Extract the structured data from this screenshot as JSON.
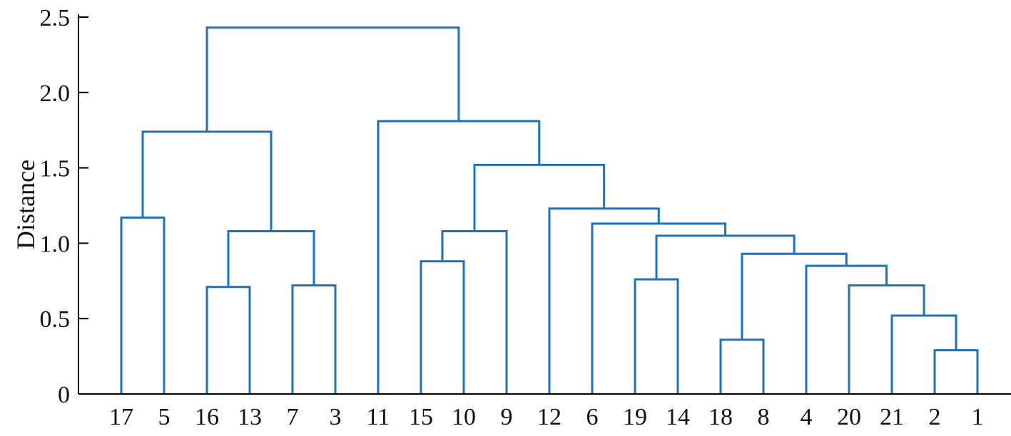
{
  "chart_data": {
    "type": "dendrogram",
    "title": "",
    "xlabel": "",
    "ylabel": "Distance",
    "ylim": [
      0,
      2.5
    ],
    "yticks": [
      0,
      0.5,
      1.0,
      1.5,
      2.0,
      2.5
    ],
    "ytick_labels": [
      "0",
      "0.5",
      "1.0",
      "1.5",
      "2.0",
      "2.5"
    ],
    "grid": false,
    "line_color": "#1f72b8",
    "leaves": [
      "17",
      "5",
      "16",
      "13",
      "7",
      "3",
      "11",
      "15",
      "10",
      "9",
      "12",
      "6",
      "19",
      "14",
      "18",
      "8",
      "4",
      "20",
      "21",
      "2",
      "1"
    ],
    "merges": [
      {
        "id": "a",
        "left": "17",
        "right": "5",
        "height": 1.17
      },
      {
        "id": "b",
        "left": "16",
        "right": "13",
        "height": 0.71
      },
      {
        "id": "c",
        "left": "7",
        "right": "3",
        "height": 0.72
      },
      {
        "id": "d",
        "left": "b",
        "right": "c",
        "height": 1.08
      },
      {
        "id": "e",
        "left": "a",
        "right": "d",
        "height": 1.74
      },
      {
        "id": "f",
        "left": "15",
        "right": "10",
        "height": 0.88
      },
      {
        "id": "g",
        "left": "f",
        "right": "9",
        "height": 1.08
      },
      {
        "id": "h",
        "left": "19",
        "right": "14",
        "height": 0.76
      },
      {
        "id": "i",
        "left": "18",
        "right": "8",
        "height": 0.36
      },
      {
        "id": "j",
        "left": "2",
        "right": "1",
        "height": 0.29
      },
      {
        "id": "k",
        "left": "21",
        "right": "j",
        "height": 0.52
      },
      {
        "id": "l",
        "left": "20",
        "right": "k",
        "height": 0.72
      },
      {
        "id": "m",
        "left": "4",
        "right": "l",
        "height": 0.85
      },
      {
        "id": "n",
        "left": "i",
        "right": "m",
        "height": 0.93
      },
      {
        "id": "o",
        "left": "h",
        "right": "n",
        "height": 1.05
      },
      {
        "id": "p",
        "left": "6",
        "right": "o",
        "height": 1.13
      },
      {
        "id": "q",
        "left": "12",
        "right": "p",
        "height": 1.23
      },
      {
        "id": "r",
        "left": "g",
        "right": "q",
        "height": 1.52
      },
      {
        "id": "s",
        "left": "11",
        "right": "r",
        "height": 1.81
      },
      {
        "id": "t",
        "left": "e",
        "right": "s",
        "height": 2.43
      }
    ]
  }
}
